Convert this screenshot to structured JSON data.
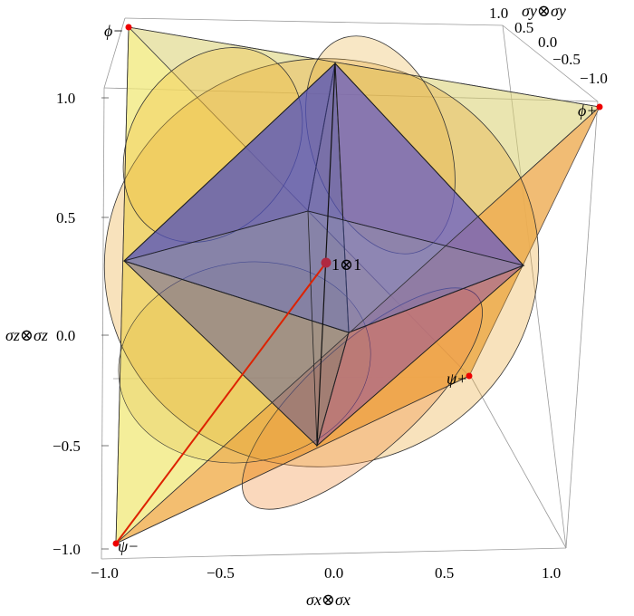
{
  "figure": {
    "x_axis": {
      "label": "σx⊗σx",
      "ticks": [
        "−1.0",
        "−0.5",
        "0.0",
        "0.5",
        "1.0"
      ]
    },
    "y_axis": {
      "label": "σy⊗σy",
      "ticks": [
        "1.0",
        "0.5",
        "0.0",
        "−0.5",
        "−1.0"
      ]
    },
    "z_axis": {
      "label": "σz⊗σz",
      "ticks": [
        "1.0",
        "0.5",
        "0.0",
        "−0.5",
        "−1.0"
      ]
    },
    "vertices": {
      "phi_minus": "ϕ−",
      "phi_plus": "ϕ+",
      "psi_plus": "ψ+",
      "psi_minus": "ψ−"
    },
    "center_label": "1⊗1",
    "colors": {
      "tetrahedron": "#f0e878",
      "tetrahedron_side": "#f5c060",
      "ellipsoid": "#e8a020",
      "octahedron": "#5a5ac8",
      "octahedron_side": "#8040b0",
      "vertex_marker": "#ee0000",
      "center_marker": "#b02840",
      "center_line": "#dd2200"
    }
  }
}
